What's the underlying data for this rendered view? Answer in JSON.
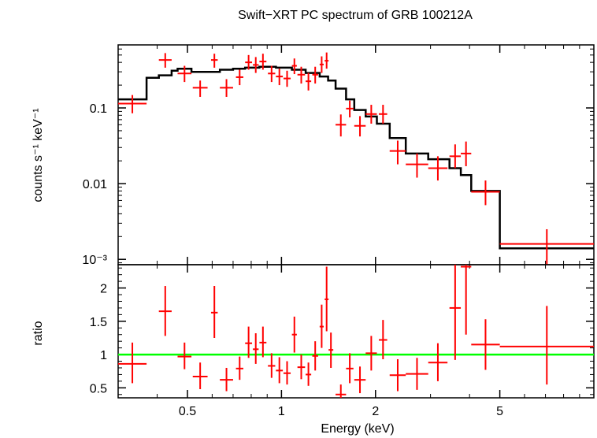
{
  "title": "Swift−XRT PC spectrum of GRB 100212A",
  "colors": {
    "data": "#ff0000",
    "model": "#000000",
    "unity": "#00ff00",
    "axis": "#000000"
  },
  "chart_data": [
    {
      "type": "scatter",
      "panel": "spectrum",
      "title": "Swift−XRT PC spectrum of GRB 100212A",
      "xlabel": "Energy (keV)",
      "ylabel": "counts s⁻¹ keV⁻¹",
      "xscale": "log",
      "yscale": "log",
      "xlim": [
        0.3,
        10
      ],
      "ylim": [
        0.00085,
        0.68
      ],
      "yticks": [
        {
          "value": 0.1,
          "label": "0.1"
        },
        {
          "value": 0.01,
          "label": "0.01"
        },
        {
          "value": 0.001,
          "label": "10⁻³"
        }
      ],
      "series": [
        {
          "kind": "data",
          "points": [
            {
              "xlo": 0.3,
              "xhi": 0.37,
              "y": 0.114,
              "ylo": 0.085,
              "yhi": 0.148
            },
            {
              "xlo": 0.405,
              "xhi": 0.445,
              "y": 0.43,
              "ylo": 0.34,
              "yhi": 0.53
            },
            {
              "xlo": 0.465,
              "xhi": 0.515,
              "y": 0.285,
              "ylo": 0.22,
              "yhi": 0.36
            },
            {
              "xlo": 0.52,
              "xhi": 0.58,
              "y": 0.185,
              "ylo": 0.14,
              "yhi": 0.23
            },
            {
              "xlo": 0.595,
              "xhi": 0.625,
              "y": 0.43,
              "ylo": 0.34,
              "yhi": 0.52
            },
            {
              "xlo": 0.635,
              "xhi": 0.7,
              "y": 0.185,
              "ylo": 0.14,
              "yhi": 0.24
            },
            {
              "xlo": 0.715,
              "xhi": 0.755,
              "y": 0.255,
              "ylo": 0.2,
              "yhi": 0.32
            },
            {
              "xlo": 0.765,
              "xhi": 0.805,
              "y": 0.4,
              "ylo": 0.32,
              "yhi": 0.5
            },
            {
              "xlo": 0.81,
              "xhi": 0.845,
              "y": 0.37,
              "ylo": 0.29,
              "yhi": 0.47
            },
            {
              "xlo": 0.85,
              "xhi": 0.895,
              "y": 0.41,
              "ylo": 0.32,
              "yhi": 0.52
            },
            {
              "xlo": 0.905,
              "xhi": 0.955,
              "y": 0.285,
              "ylo": 0.22,
              "yhi": 0.36
            },
            {
              "xlo": 0.96,
              "xhi": 1.01,
              "y": 0.26,
              "ylo": 0.2,
              "yhi": 0.33
            },
            {
              "xlo": 1.015,
              "xhi": 1.07,
              "y": 0.245,
              "ylo": 0.19,
              "yhi": 0.31
            },
            {
              "xlo": 1.08,
              "xhi": 1.12,
              "y": 0.36,
              "ylo": 0.28,
              "yhi": 0.45
            },
            {
              "xlo": 1.125,
              "xhi": 1.19,
              "y": 0.275,
              "ylo": 0.21,
              "yhi": 0.35
            },
            {
              "xlo": 1.195,
              "xhi": 1.245,
              "y": 0.225,
              "ylo": 0.17,
              "yhi": 0.29
            },
            {
              "xlo": 1.255,
              "xhi": 1.31,
              "y": 0.275,
              "ylo": 0.21,
              "yhi": 0.35
            },
            {
              "xlo": 1.325,
              "xhi": 1.365,
              "y": 0.375,
              "ylo": 0.29,
              "yhi": 0.48
            },
            {
              "xlo": 1.375,
              "xhi": 1.415,
              "y": 0.42,
              "ylo": 0.33,
              "yhi": 0.54
            },
            {
              "xlo": 1.49,
              "xhi": 1.61,
              "y": 0.06,
              "ylo": 0.042,
              "yhi": 0.082
            },
            {
              "xlo": 1.61,
              "xhi": 1.7,
              "y": 0.098,
              "ylo": 0.075,
              "yhi": 0.125
            },
            {
              "xlo": 1.71,
              "xhi": 1.86,
              "y": 0.058,
              "ylo": 0.042,
              "yhi": 0.078
            },
            {
              "xlo": 1.86,
              "xhi": 2.02,
              "y": 0.083,
              "ylo": 0.062,
              "yhi": 0.11
            },
            {
              "xlo": 2.05,
              "xhi": 2.18,
              "y": 0.083,
              "ylo": 0.062,
              "yhi": 0.11
            },
            {
              "xlo": 2.22,
              "xhi": 2.5,
              "y": 0.027,
              "ylo": 0.018,
              "yhi": 0.037
            },
            {
              "xlo": 2.5,
              "xhi": 2.95,
              "y": 0.018,
              "ylo": 0.012,
              "yhi": 0.025
            },
            {
              "xlo": 2.95,
              "xhi": 3.4,
              "y": 0.016,
              "ylo": 0.011,
              "yhi": 0.023
            },
            {
              "xlo": 3.45,
              "xhi": 3.75,
              "y": 0.023,
              "ylo": 0.016,
              "yhi": 0.033
            },
            {
              "xlo": 3.75,
              "xhi": 4.05,
              "y": 0.025,
              "ylo": 0.017,
              "yhi": 0.036
            },
            {
              "xlo": 4.05,
              "xhi": 5.0,
              "y": 0.0078,
              "ylo": 0.0052,
              "yhi": 0.011
            },
            {
              "xlo": 5.0,
              "xhi": 10.0,
              "y": 0.0016,
              "ylo": 0.00085,
              "yhi": 0.0025
            }
          ]
        },
        {
          "kind": "model",
          "style": "step",
          "edges": [
            0.3,
            0.37,
            0.405,
            0.445,
            0.465,
            0.515,
            0.58,
            0.635,
            0.7,
            0.765,
            0.85,
            0.96,
            1.08,
            1.195,
            1.325,
            1.41,
            1.49,
            1.61,
            1.71,
            1.86,
            2.02,
            2.22,
            2.5,
            2.95,
            3.45,
            3.75,
            4.05,
            5.0,
            10.0
          ],
          "values": [
            0.13,
            0.25,
            0.27,
            0.31,
            0.33,
            0.3,
            0.3,
            0.32,
            0.33,
            0.34,
            0.35,
            0.34,
            0.32,
            0.29,
            0.26,
            0.23,
            0.18,
            0.13,
            0.094,
            0.077,
            0.062,
            0.04,
            0.025,
            0.021,
            0.016,
            0.013,
            0.008,
            0.0014
          ]
        }
      ]
    },
    {
      "type": "scatter",
      "panel": "ratio",
      "xlabel": "Energy (keV)",
      "ylabel": "ratio",
      "xscale": "log",
      "yscale": "linear",
      "xlim": [
        0.3,
        10
      ],
      "ylim": [
        0.35,
        2.35
      ],
      "xticks": [
        {
          "value": 0.5,
          "label": "0.5"
        },
        {
          "value": 1,
          "label": "1"
        },
        {
          "value": 2,
          "label": "2"
        },
        {
          "value": 5,
          "label": "5"
        }
      ],
      "yticks": [
        {
          "value": 0.5,
          "label": "0.5"
        },
        {
          "value": 1,
          "label": "1"
        },
        {
          "value": 1.5,
          "label": "1.5"
        },
        {
          "value": 2,
          "label": "2"
        }
      ],
      "reference_line": 1,
      "series": [
        {
          "kind": "data",
          "points": [
            {
              "xlo": 0.3,
              "xhi": 0.37,
              "y": 0.86,
              "ylo": 0.57,
              "yhi": 1.18
            },
            {
              "xlo": 0.405,
              "xhi": 0.445,
              "y": 1.65,
              "ylo": 1.28,
              "yhi": 2.03
            },
            {
              "xlo": 0.465,
              "xhi": 0.515,
              "y": 0.97,
              "ylo": 0.78,
              "yhi": 1.18
            },
            {
              "xlo": 0.52,
              "xhi": 0.58,
              "y": 0.67,
              "ylo": 0.48,
              "yhi": 0.88
            },
            {
              "xlo": 0.595,
              "xhi": 0.625,
              "y": 1.63,
              "ylo": 1.25,
              "yhi": 2.03
            },
            {
              "xlo": 0.635,
              "xhi": 0.7,
              "y": 0.62,
              "ylo": 0.45,
              "yhi": 0.8
            },
            {
              "xlo": 0.715,
              "xhi": 0.755,
              "y": 0.79,
              "ylo": 0.62,
              "yhi": 0.97
            },
            {
              "xlo": 0.765,
              "xhi": 0.805,
              "y": 1.17,
              "ylo": 0.95,
              "yhi": 1.42
            },
            {
              "xlo": 0.81,
              "xhi": 0.845,
              "y": 1.08,
              "ylo": 0.86,
              "yhi": 1.32
            },
            {
              "xlo": 0.85,
              "xhi": 0.895,
              "y": 1.18,
              "ylo": 0.96,
              "yhi": 1.42
            },
            {
              "xlo": 0.905,
              "xhi": 0.955,
              "y": 0.83,
              "ylo": 0.65,
              "yhi": 1.02
            },
            {
              "xlo": 0.96,
              "xhi": 1.01,
              "y": 0.76,
              "ylo": 0.57,
              "yhi": 0.96
            },
            {
              "xlo": 1.015,
              "xhi": 1.07,
              "y": 0.72,
              "ylo": 0.55,
              "yhi": 0.9
            },
            {
              "xlo": 1.08,
              "xhi": 1.12,
              "y": 1.3,
              "ylo": 1.03,
              "yhi": 1.57
            },
            {
              "xlo": 1.125,
              "xhi": 1.19,
              "y": 0.81,
              "ylo": 0.63,
              "yhi": 1.0
            },
            {
              "xlo": 1.195,
              "xhi": 1.245,
              "y": 0.7,
              "ylo": 0.53,
              "yhi": 0.88
            },
            {
              "xlo": 1.255,
              "xhi": 1.31,
              "y": 0.98,
              "ylo": 0.76,
              "yhi": 1.2
            },
            {
              "xlo": 1.325,
              "xhi": 1.365,
              "y": 1.42,
              "ylo": 1.1,
              "yhi": 1.75
            },
            {
              "xlo": 1.375,
              "xhi": 1.415,
              "y": 1.83,
              "ylo": 1.35,
              "yhi": 2.32
            },
            {
              "xlo": 1.415,
              "xhi": 1.465,
              "y": 1.07,
              "ylo": 0.8,
              "yhi": 1.33
            },
            {
              "xlo": 1.49,
              "xhi": 1.61,
              "y": 0.4,
              "ylo": 0.35,
              "yhi": 0.55
            },
            {
              "xlo": 1.61,
              "xhi": 1.7,
              "y": 0.79,
              "ylo": 0.57,
              "yhi": 1.02
            },
            {
              "xlo": 1.71,
              "xhi": 1.86,
              "y": 0.62,
              "ylo": 0.42,
              "yhi": 0.82
            },
            {
              "xlo": 1.86,
              "xhi": 2.02,
              "y": 1.02,
              "ylo": 0.76,
              "yhi": 1.28
            },
            {
              "xlo": 2.05,
              "xhi": 2.18,
              "y": 1.22,
              "ylo": 0.93,
              "yhi": 1.52
            },
            {
              "xlo": 2.22,
              "xhi": 2.5,
              "y": 0.69,
              "ylo": 0.45,
              "yhi": 0.93
            },
            {
              "xlo": 2.5,
              "xhi": 2.95,
              "y": 0.71,
              "ylo": 0.47,
              "yhi": 0.95
            },
            {
              "xlo": 2.95,
              "xhi": 3.4,
              "y": 0.88,
              "ylo": 0.6,
              "yhi": 1.17
            },
            {
              "xlo": 3.45,
              "xhi": 3.75,
              "y": 1.7,
              "ylo": 0.92,
              "yhi": 2.35
            },
            {
              "xlo": 3.75,
              "xhi": 4.05,
              "y": 2.32,
              "ylo": 1.3,
              "yhi": 2.35
            },
            {
              "xlo": 4.05,
              "xhi": 5.0,
              "y": 1.15,
              "ylo": 0.77,
              "yhi": 1.53
            },
            {
              "xlo": 5.0,
              "xhi": 10.0,
              "y": 1.12,
              "ylo": 0.55,
              "yhi": 1.73
            }
          ]
        }
      ]
    }
  ]
}
